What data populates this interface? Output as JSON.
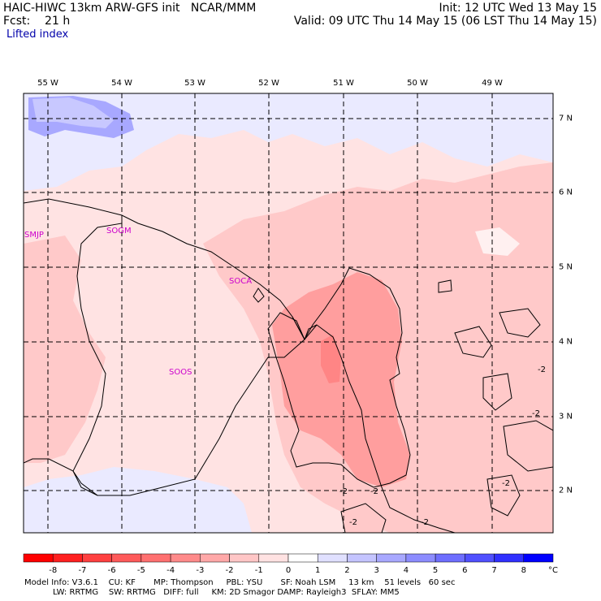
{
  "header": {
    "title": "HAIC-HIWC 13km ARW-GFS init   NCAR/MMM",
    "fcst": "Fcst:    21 h",
    "init": "Init: 12 UTC Wed 13 May 15",
    "valid": "Valid: 09 UTC Thu 14 May 15 (06 LST Thu 14 May 15)",
    "field": "Lifted index"
  },
  "map": {
    "lon_labels": [
      "55 W",
      "54 W",
      "53 W",
      "52 W",
      "51 W",
      "50 W",
      "49 W"
    ],
    "lat_labels": [
      "7 N",
      "6 N",
      "5 N",
      "4 N",
      "3 N",
      "2 N"
    ],
    "stations": [
      "SMJP",
      "SOGM",
      "SOCA",
      "SOOS"
    ],
    "contour_labels": [
      "-2",
      "-2",
      "-2",
      "-2",
      "-2",
      "-2",
      "-2"
    ],
    "colors": {
      "neg1": "#ffe3e3",
      "neg2": "#ffc9c9",
      "neg3": "#ff9e9e",
      "pos1": "#eaeaff",
      "pos2": "#c8c8ff",
      "pos3": "#a0a0ff",
      "outline": "#000000",
      "station": "#cc00cc"
    }
  },
  "colorbar": {
    "labels": [
      "-8",
      "-7",
      "-6",
      "-5",
      "-4",
      "-3",
      "-2",
      "-1",
      "0",
      "1",
      "2",
      "3",
      "4",
      "5",
      "6",
      "7",
      "8",
      "°C"
    ],
    "colors": [
      "#ff0000",
      "#ff2020",
      "#ff4040",
      "#ff5a5a",
      "#ff7070",
      "#ff8a8a",
      "#ffa8a8",
      "#ffc6c6",
      "#ffe2e2",
      "#ffffff",
      "#e0e0ff",
      "#c4c4ff",
      "#a8a8ff",
      "#8c8cff",
      "#6e6eff",
      "#5050ff",
      "#3030ff",
      "#0000ff"
    ]
  },
  "footer": {
    "line1": "Model Info: V3.6.1    CU: KF       MP: Thompson     PBL: YSU       SF: Noah LSM     13 km    51 levels   60 sec",
    "line2": "           LW: RRTMG    SW: RRTMG   DIFF: full     KM: 2D Smagor DAMP: Rayleigh3  SFLAY: MM5"
  }
}
